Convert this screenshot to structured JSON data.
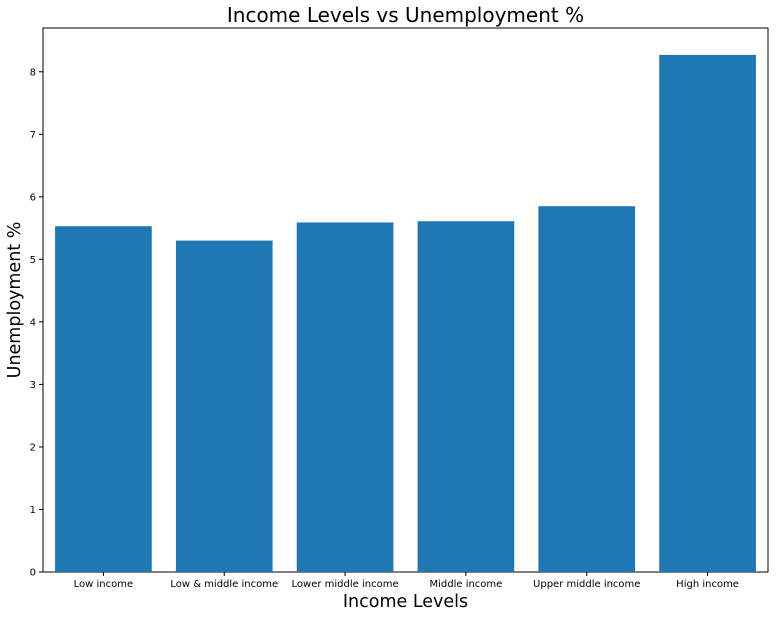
{
  "chart_data": {
    "type": "bar",
    "title": "Income Levels vs Unemployment %",
    "xlabel": "Income Levels",
    "ylabel": "Unemployment %",
    "categories": [
      "Low income",
      "Low & middle income",
      "Lower middle income",
      "Middle income",
      "Upper middle income",
      "High income"
    ],
    "values": [
      5.53,
      5.3,
      5.59,
      5.61,
      5.85,
      8.27
    ],
    "ylim": [
      0,
      8.7
    ],
    "yticks": [
      0,
      1,
      2,
      3,
      4,
      5,
      6,
      7,
      8
    ],
    "bar_color": "#1f77b4",
    "grid": false,
    "legend": "none"
  }
}
